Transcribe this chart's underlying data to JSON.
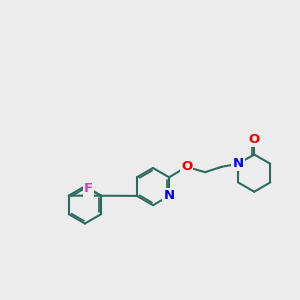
{
  "background_color": "#ececec",
  "bond_color": "#2d6b5e",
  "N_color": "#0000ee",
  "O_color": "#ee0000",
  "F_color": "#cc44bb",
  "line_width": 1.5,
  "dbo": 0.06,
  "font_size": 9.5,
  "figsize": [
    3.0,
    3.0
  ],
  "dpi": 100,
  "xlim": [
    0,
    10
  ],
  "ylim": [
    0,
    10
  ]
}
